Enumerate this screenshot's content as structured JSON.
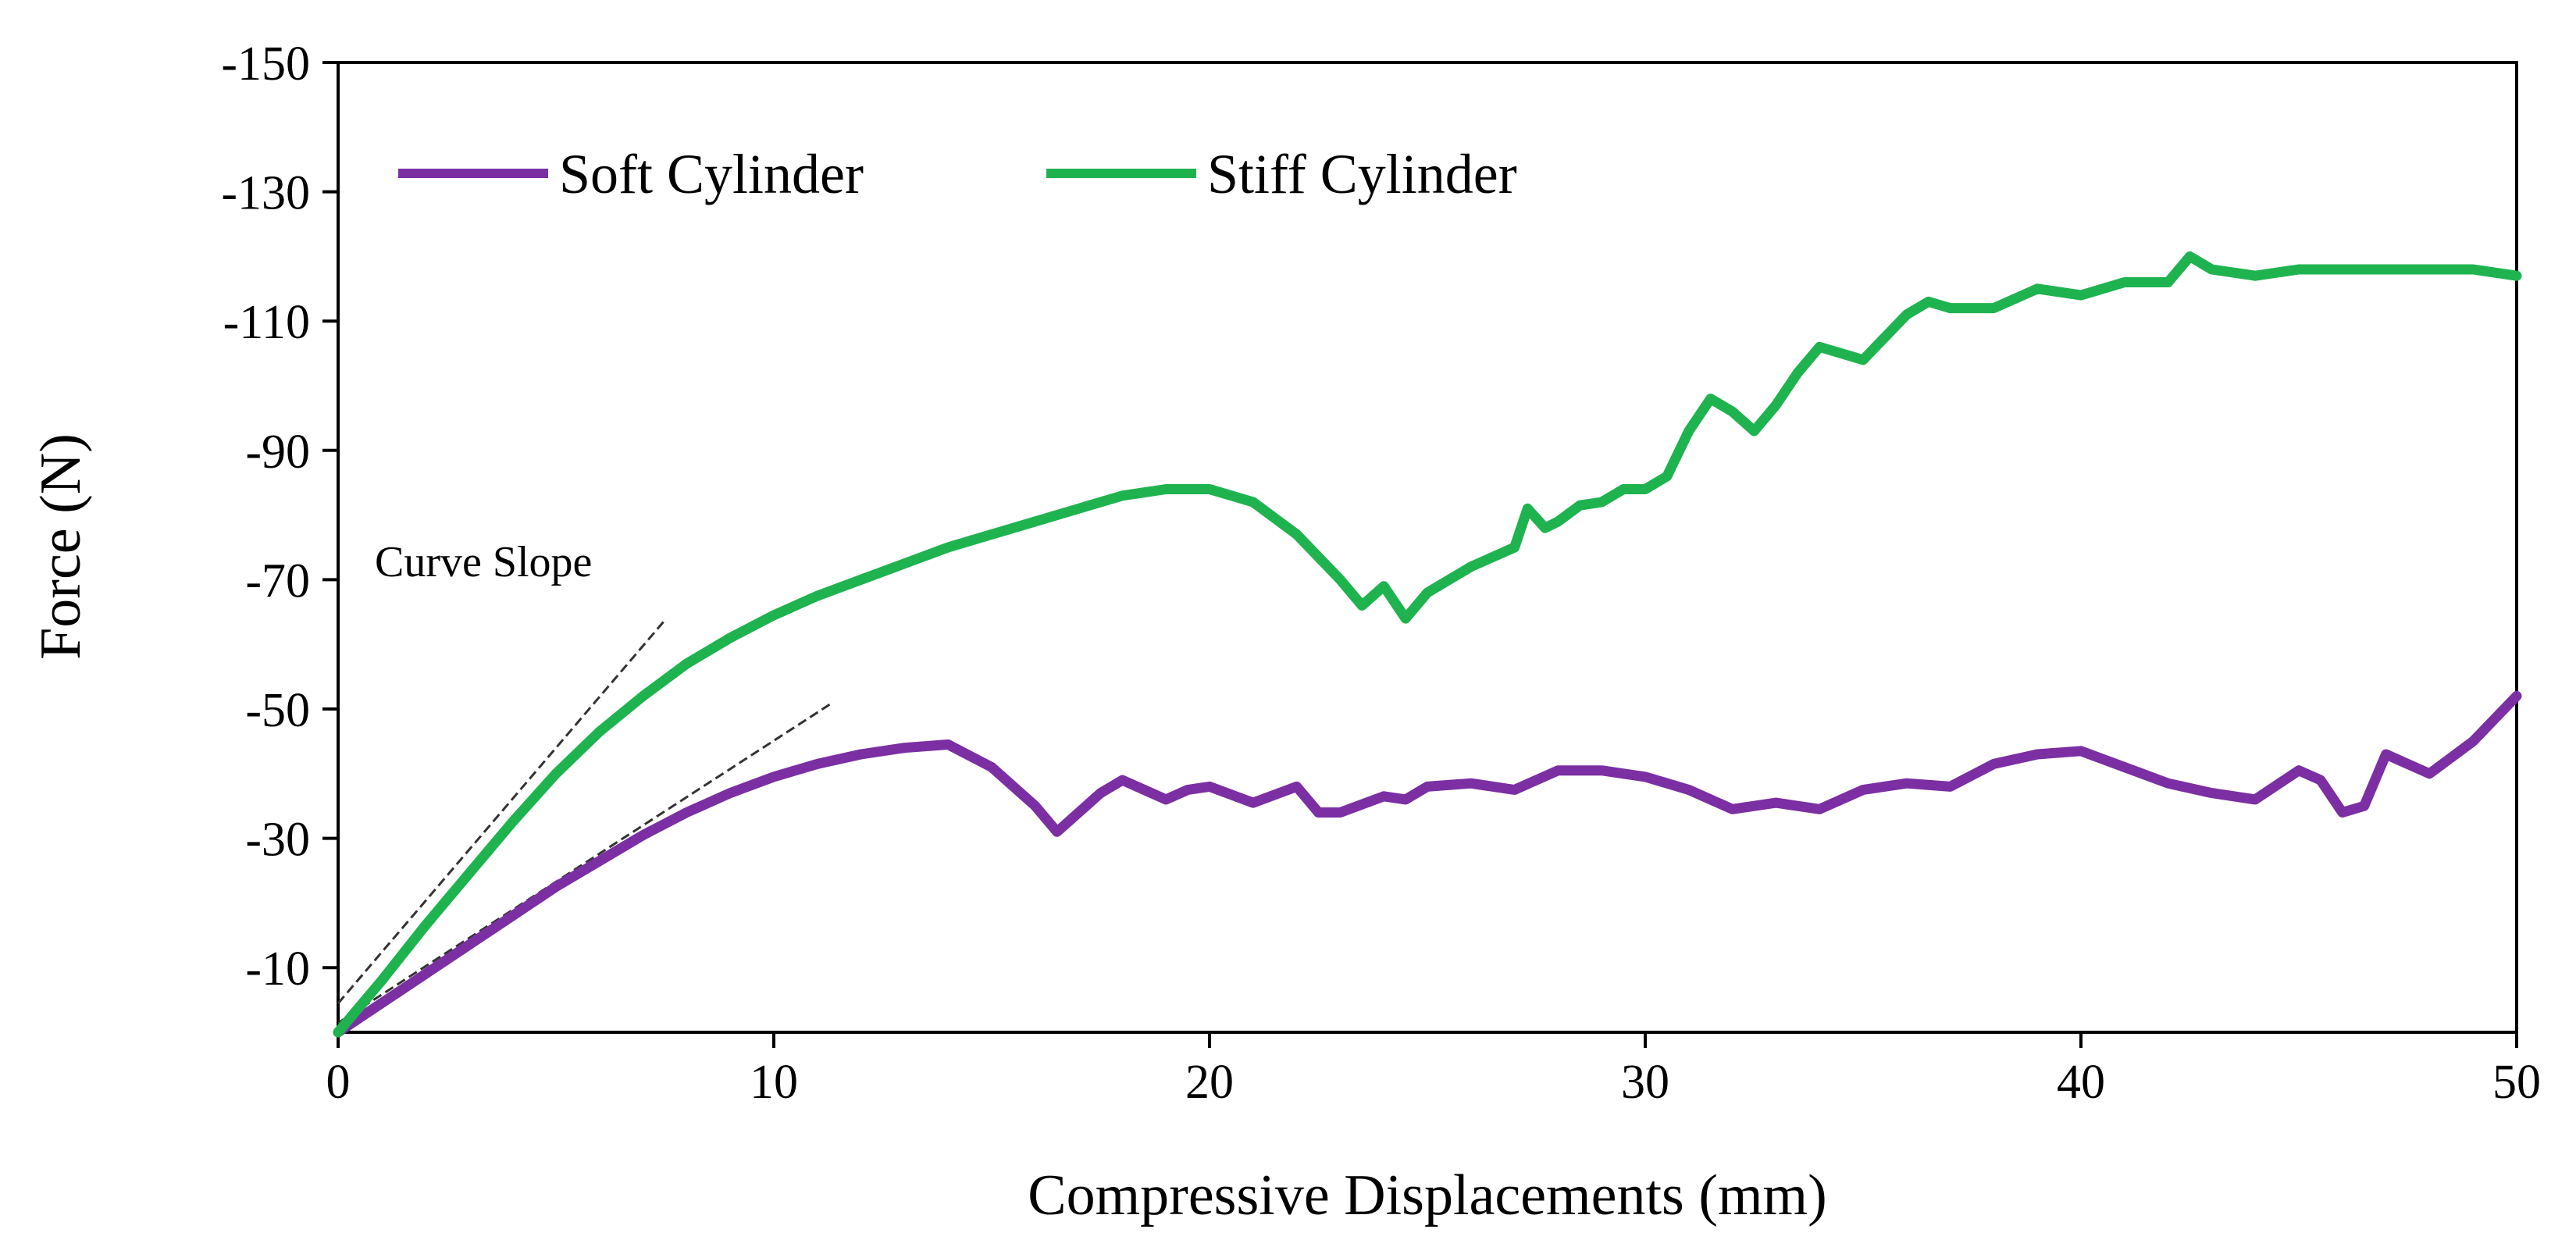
{
  "chart_data": {
    "type": "line",
    "xlabel": "Compressive Displacements (mm)",
    "ylabel": "Force (N)",
    "xlim": [
      0,
      50
    ],
    "ylim": [
      0,
      -150
    ],
    "x_ticks": [
      0,
      10,
      20,
      30,
      40,
      50
    ],
    "y_ticks": [
      -10,
      -30,
      -50,
      -70,
      -90,
      -110,
      -130,
      -150
    ],
    "legend_position": "top-left",
    "grid": false,
    "series": [
      {
        "name": "Soft Cylinder",
        "color": "#7b2fa3",
        "x": [
          0,
          1,
          2,
          3,
          4,
          5,
          6,
          7,
          8,
          9,
          10,
          11,
          12,
          13,
          14,
          15,
          16,
          16.5,
          17,
          17.5,
          18,
          18.5,
          19,
          19.5,
          20,
          21,
          22,
          22.5,
          23,
          24,
          24.5,
          25,
          26,
          27,
          28,
          29,
          30,
          31,
          32,
          33,
          34,
          35,
          36,
          37,
          38,
          39,
          40,
          41,
          42,
          43,
          44,
          45,
          45.5,
          46,
          46.5,
          47,
          47.5,
          48,
          49,
          50
        ],
        "y": [
          0,
          -4.5,
          -9,
          -13.5,
          -18,
          -22.5,
          -26.5,
          -30.5,
          -34,
          -37,
          -39.5,
          -41.5,
          -43,
          -44,
          -44.5,
          -41,
          -35,
          -31,
          -34,
          -37,
          -39,
          -37.5,
          -36,
          -37.5,
          -38,
          -35.5,
          -38,
          -34,
          -34,
          -36.5,
          -36,
          -38,
          -38.5,
          -37.5,
          -40.5,
          -40.5,
          -39.5,
          -37.5,
          -34.5,
          -35.5,
          -34.5,
          -37.5,
          -38.5,
          -38,
          -41.5,
          -43,
          -43.5,
          -41,
          -38.5,
          -37,
          -36,
          -40.5,
          -39,
          -34,
          -35,
          -43,
          -41.5,
          -40,
          -45,
          -52
        ]
      },
      {
        "name": "Stiff Cylinder",
        "color": "#1fb34f",
        "x": [
          0,
          1,
          2,
          3,
          4,
          5,
          6,
          7,
          8,
          9,
          10,
          11,
          12,
          13,
          14,
          15,
          16,
          17,
          18,
          19,
          20,
          21,
          22,
          23,
          23.5,
          24,
          24.5,
          25,
          26,
          27,
          27.3,
          27.7,
          28,
          28.5,
          29,
          29.5,
          30,
          30.5,
          31,
          31.5,
          32,
          32.5,
          33,
          33.5,
          34,
          35,
          36,
          36.5,
          37,
          38,
          39,
          40,
          41,
          42,
          42.5,
          43,
          44,
          45,
          46,
          47,
          48,
          49,
          50
        ],
        "y": [
          0,
          -8,
          -16.5,
          -24.5,
          -32.5,
          -40,
          -46.5,
          -52,
          -57,
          -61,
          -64.5,
          -67.5,
          -70,
          -72.5,
          -75,
          -77,
          -79,
          -81,
          -83,
          -84,
          -84,
          -82,
          -77,
          -70,
          -66,
          -69,
          -64,
          -68,
          -72,
          -75,
          -81,
          -78,
          -79,
          -81.5,
          -82,
          -84,
          -84,
          -86,
          -93,
          -98,
          -96,
          -93,
          -97,
          -102,
          -106,
          -104,
          -111,
          -113,
          -112,
          -112,
          -115,
          -114,
          -116,
          -116,
          -120,
          -118,
          -117,
          -118,
          -118,
          -118,
          -118,
          -118,
          -117
        ]
      }
    ],
    "annotations": [
      {
        "text": "Curve Slope"
      }
    ]
  }
}
